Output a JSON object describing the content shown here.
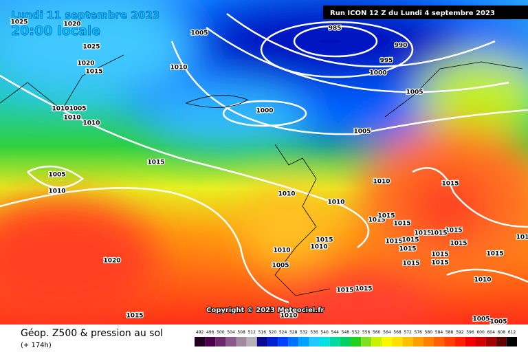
{
  "header": {
    "date": "Lundi 11 septembre 2023",
    "time": "20:00 locale",
    "run": "Run ICON 12 Z du Lundi 4 septembre 2023"
  },
  "copyright": "Copyright © 2023 Meteociel.fr",
  "footer": {
    "title": "Géop. Z500 & pression au sol",
    "lead": "(+ 174h)"
  },
  "isobar_labels": [
    "1025",
    "1020",
    "1005",
    "1025",
    "1020",
    "1015",
    "1010",
    "985",
    "990",
    "995",
    "1000",
    "1005",
    "1010",
    "1005",
    "1010",
    "1010",
    "1000",
    "1005",
    "1015",
    "1005",
    "1010",
    "1010",
    "1015",
    "1010",
    "1010",
    "1015",
    "1015",
    "1015",
    "1015",
    "1015",
    "1010",
    "1010",
    "1015",
    "1015",
    "1015",
    "1015",
    "1015",
    "1015",
    "1015",
    "1015",
    "1015",
    "1015",
    "1005",
    "1020",
    "1010",
    "1015",
    "1015",
    "1015",
    "1010",
    "1005",
    "1005",
    "101"
  ],
  "colorbar": [
    "492",
    "496",
    "500",
    "504",
    "508",
    "512",
    "516",
    "520",
    "524",
    "528",
    "532",
    "536",
    "540",
    "544",
    "548",
    "552",
    "556",
    "560",
    "564",
    "568",
    "572",
    "576",
    "580",
    "584",
    "588",
    "592",
    "596",
    "600",
    "604",
    "608",
    "612"
  ]
}
